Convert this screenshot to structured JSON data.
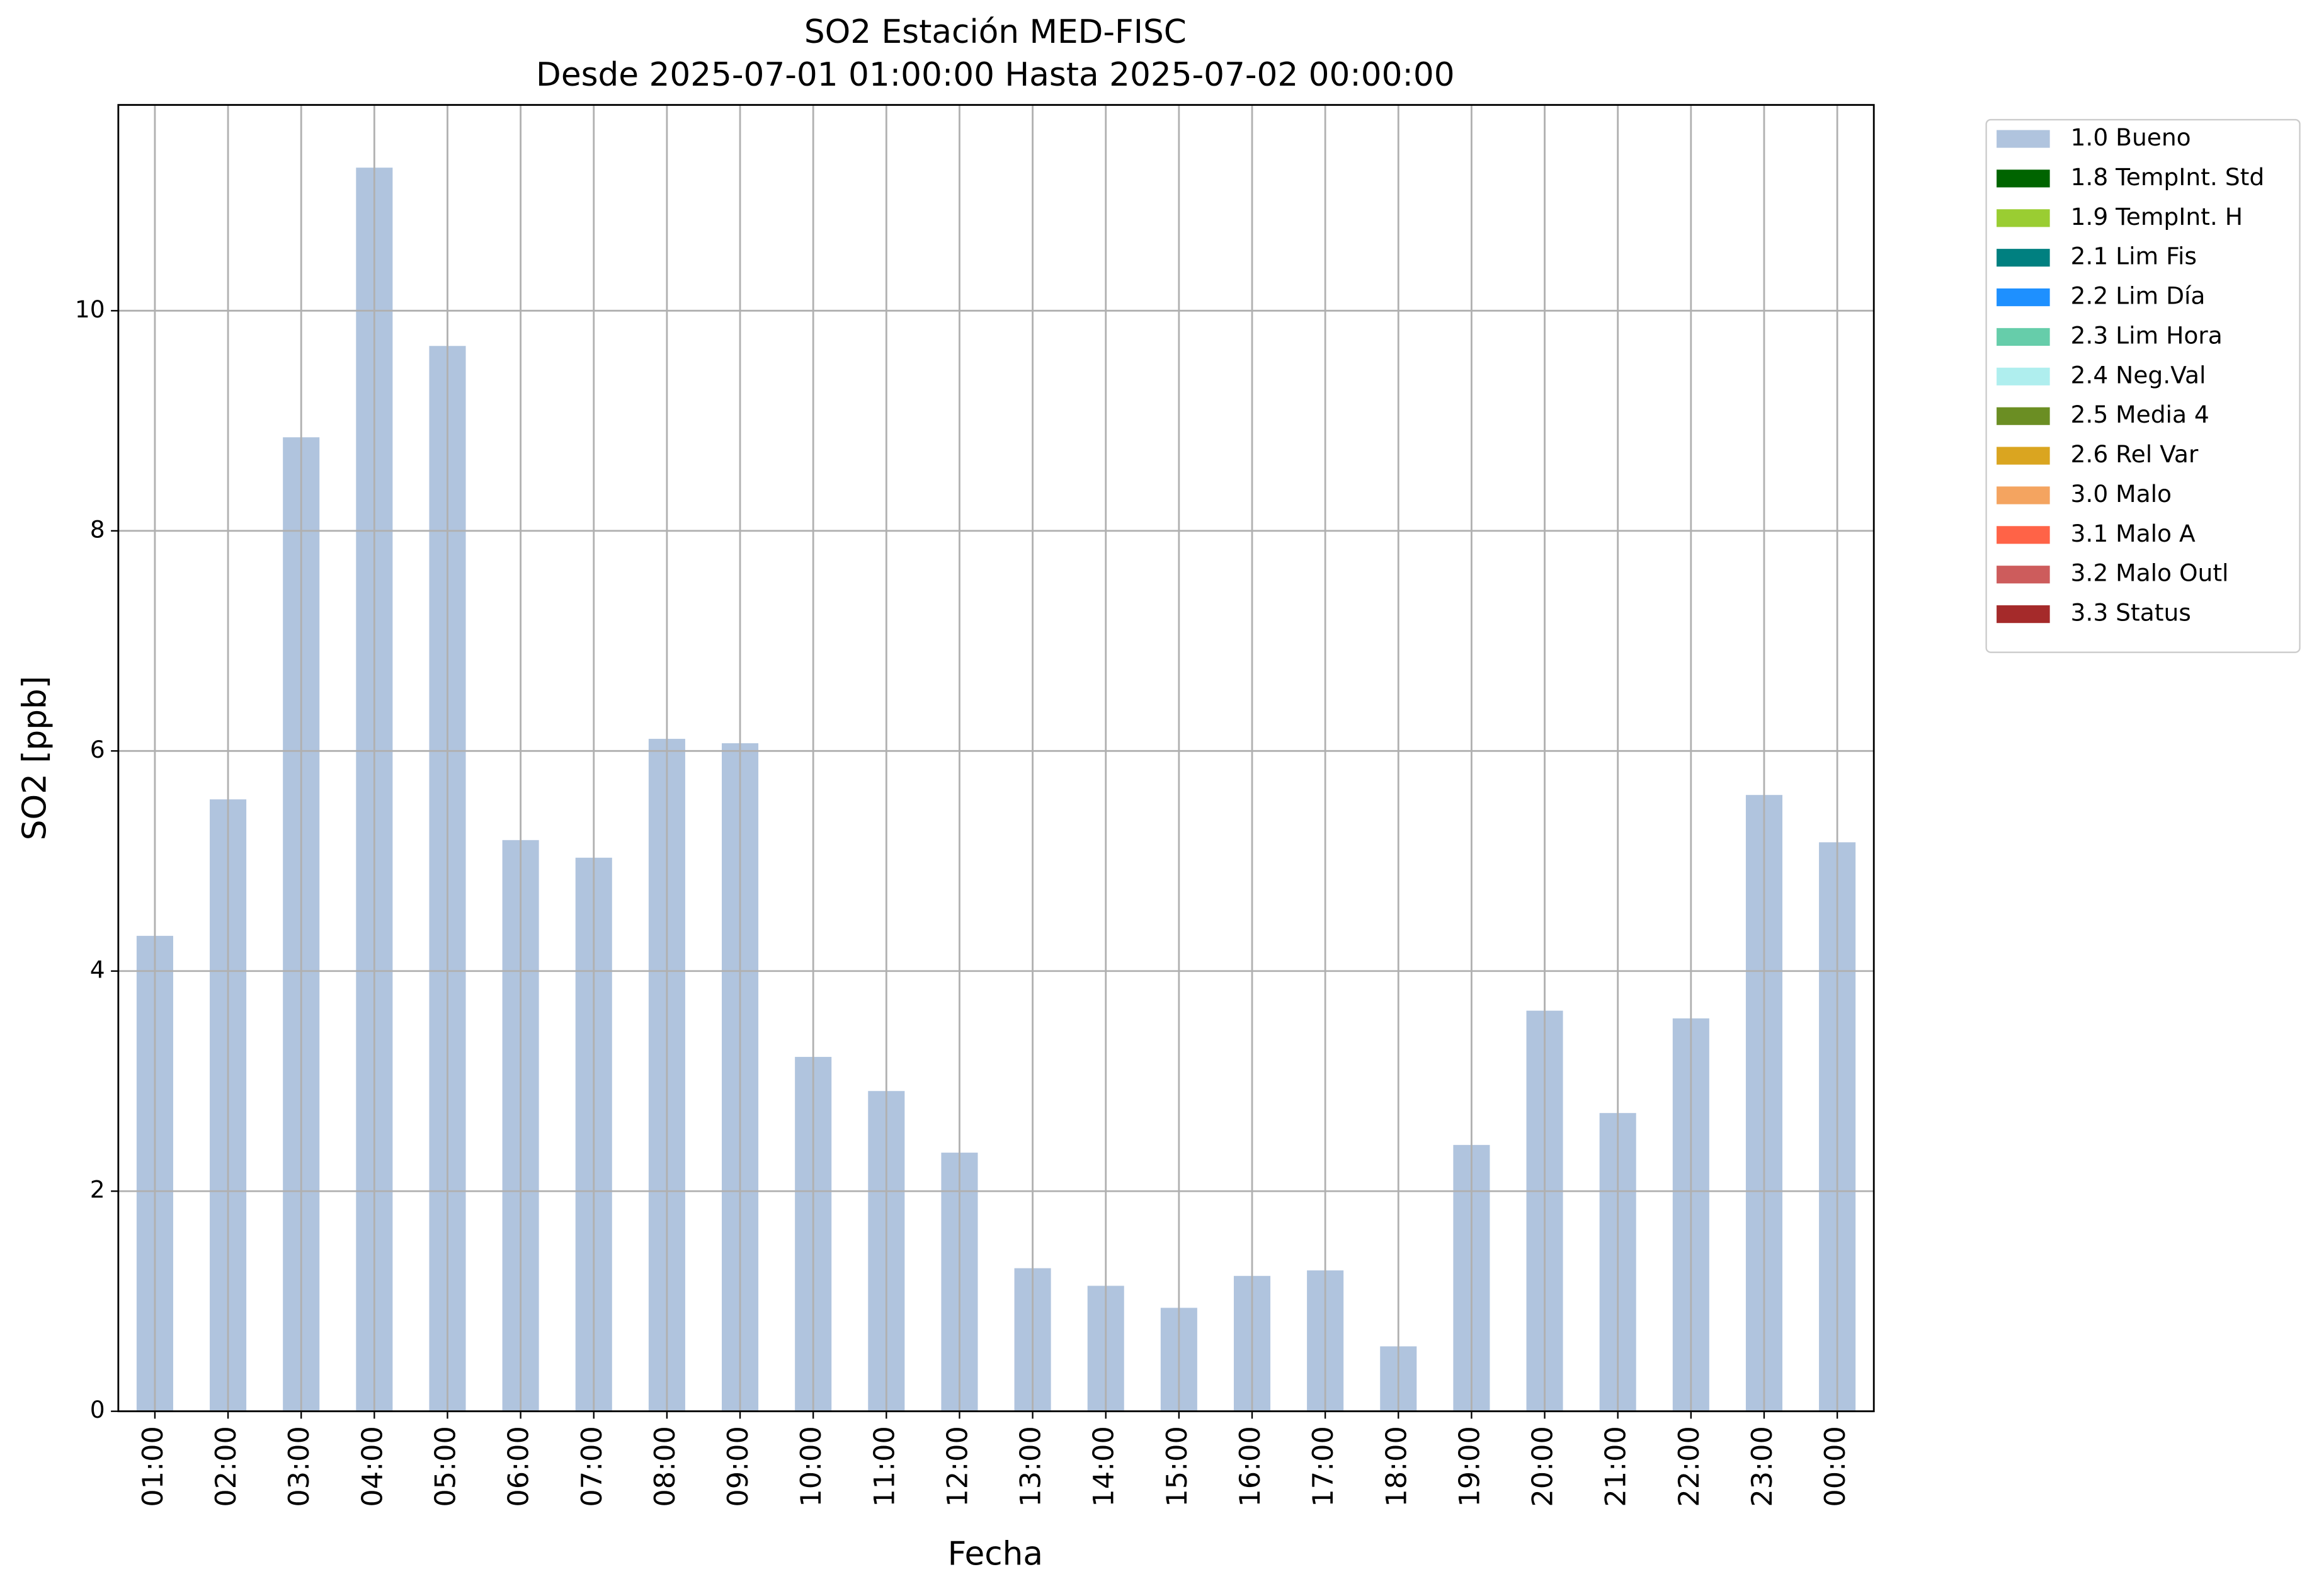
{
  "chart_data": {
    "type": "bar",
    "title": "SO2 Estación MED-FISC",
    "subtitle": "Desde 2025-07-01 01:00:00 Hasta 2025-07-02 00:00:00",
    "x_label": "Fecha",
    "y_label": "SO2 [ppb]",
    "categories": [
      "01:00",
      "02:00",
      "03:00",
      "04:00",
      "05:00",
      "06:00",
      "07:00",
      "08:00",
      "09:00",
      "10:00",
      "11:00",
      "12:00",
      "13:00",
      "14:00",
      "15:00",
      "16:00",
      "17:00",
      "18:00",
      "19:00",
      "20:00",
      "21:00",
      "22:00",
      "23:00",
      "00:00"
    ],
    "series": [
      {
        "name": "1.0 Bueno",
        "color": "#b0c4de",
        "values": [
          4.32,
          5.56,
          8.85,
          11.3,
          9.68,
          5.19,
          5.03,
          6.11,
          6.07,
          3.22,
          2.91,
          2.35,
          1.3,
          1.14,
          0.94,
          1.23,
          1.28,
          0.59,
          2.42,
          3.64,
          2.71,
          3.57,
          5.6,
          5.17
        ]
      }
    ],
    "legend_items": [
      {
        "name": "1.8 TempInt. Std",
        "color": "#006400"
      },
      {
        "name": "1.9 TempInt. H",
        "color": "#9acd32"
      },
      {
        "name": "2.1 Lim Fis",
        "color": "#008080"
      },
      {
        "name": "2.2 Lim Día",
        "color": "#1e90ff"
      },
      {
        "name": "2.3 Lim Hora",
        "color": "#66cdaa"
      },
      {
        "name": "2.4 Neg.Val",
        "color": "#afeeee"
      },
      {
        "name": "2.5 Media 4",
        "color": "#6b8e23"
      },
      {
        "name": "2.6 Rel Var",
        "color": "#daa520"
      },
      {
        "name": "3.0 Malo",
        "color": "#f4a460"
      },
      {
        "name": "3.1 Malo A",
        "color": "#ff6347"
      },
      {
        "name": "3.2 Malo Outl",
        "color": "#cd5c5c"
      },
      {
        "name": "3.3 Status",
        "color": "#a52a2a"
      }
    ],
    "legend": "outside-upper-right",
    "ylim": [
      0,
      11.87
    ],
    "yticks": [
      0,
      2,
      4,
      6,
      8,
      10
    ],
    "grid": true
  }
}
